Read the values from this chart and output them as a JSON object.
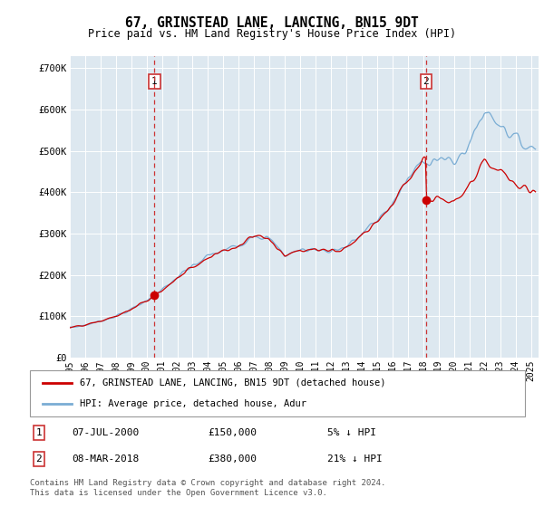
{
  "title": "67, GRINSTEAD LANE, LANCING, BN15 9DT",
  "subtitle": "Price paid vs. HM Land Registry's House Price Index (HPI)",
  "ylim": [
    0,
    730000
  ],
  "xlim_start": 1995.0,
  "xlim_end": 2025.5,
  "sale1_date": 2000.52,
  "sale1_price": 150000,
  "sale1_label": "1",
  "sale2_date": 2018.18,
  "sale2_price": 380000,
  "sale2_label": "2",
  "property_color": "#cc0000",
  "hpi_color": "#7aadd4",
  "bg_color": "#dde8f0",
  "legend_label1": "67, GRINSTEAD LANE, LANCING, BN15 9DT (detached house)",
  "legend_label2": "HPI: Average price, detached house, Adur",
  "note1_label": "1",
  "note1_date": "07-JUL-2000",
  "note1_price": "£150,000",
  "note1_hpi": "5% ↓ HPI",
  "note2_label": "2",
  "note2_date": "08-MAR-2018",
  "note2_price": "£380,000",
  "note2_hpi": "21% ↓ HPI",
  "footer": "Contains HM Land Registry data © Crown copyright and database right 2024.\nThis data is licensed under the Open Government Licence v3.0.",
  "hpi_keypoints_x": [
    1995,
    1996,
    1997,
    1998,
    1999,
    2000,
    2001,
    2002,
    2003,
    2004,
    2005,
    2006,
    2007,
    2008,
    2009,
    2010,
    2011,
    2012,
    2013,
    2014,
    2015,
    2016,
    2017,
    2018,
    2019,
    2020,
    2021,
    2022,
    2023,
    2024,
    2025
  ],
  "hpi_keypoints_y": [
    72000,
    78000,
    88000,
    100000,
    116000,
    138000,
    162000,
    193000,
    220000,
    245000,
    258000,
    272000,
    300000,
    285000,
    248000,
    260000,
    262000,
    258000,
    268000,
    298000,
    332000,
    372000,
    430000,
    478000,
    482000,
    468000,
    518000,
    598000,
    568000,
    528000,
    508000
  ]
}
